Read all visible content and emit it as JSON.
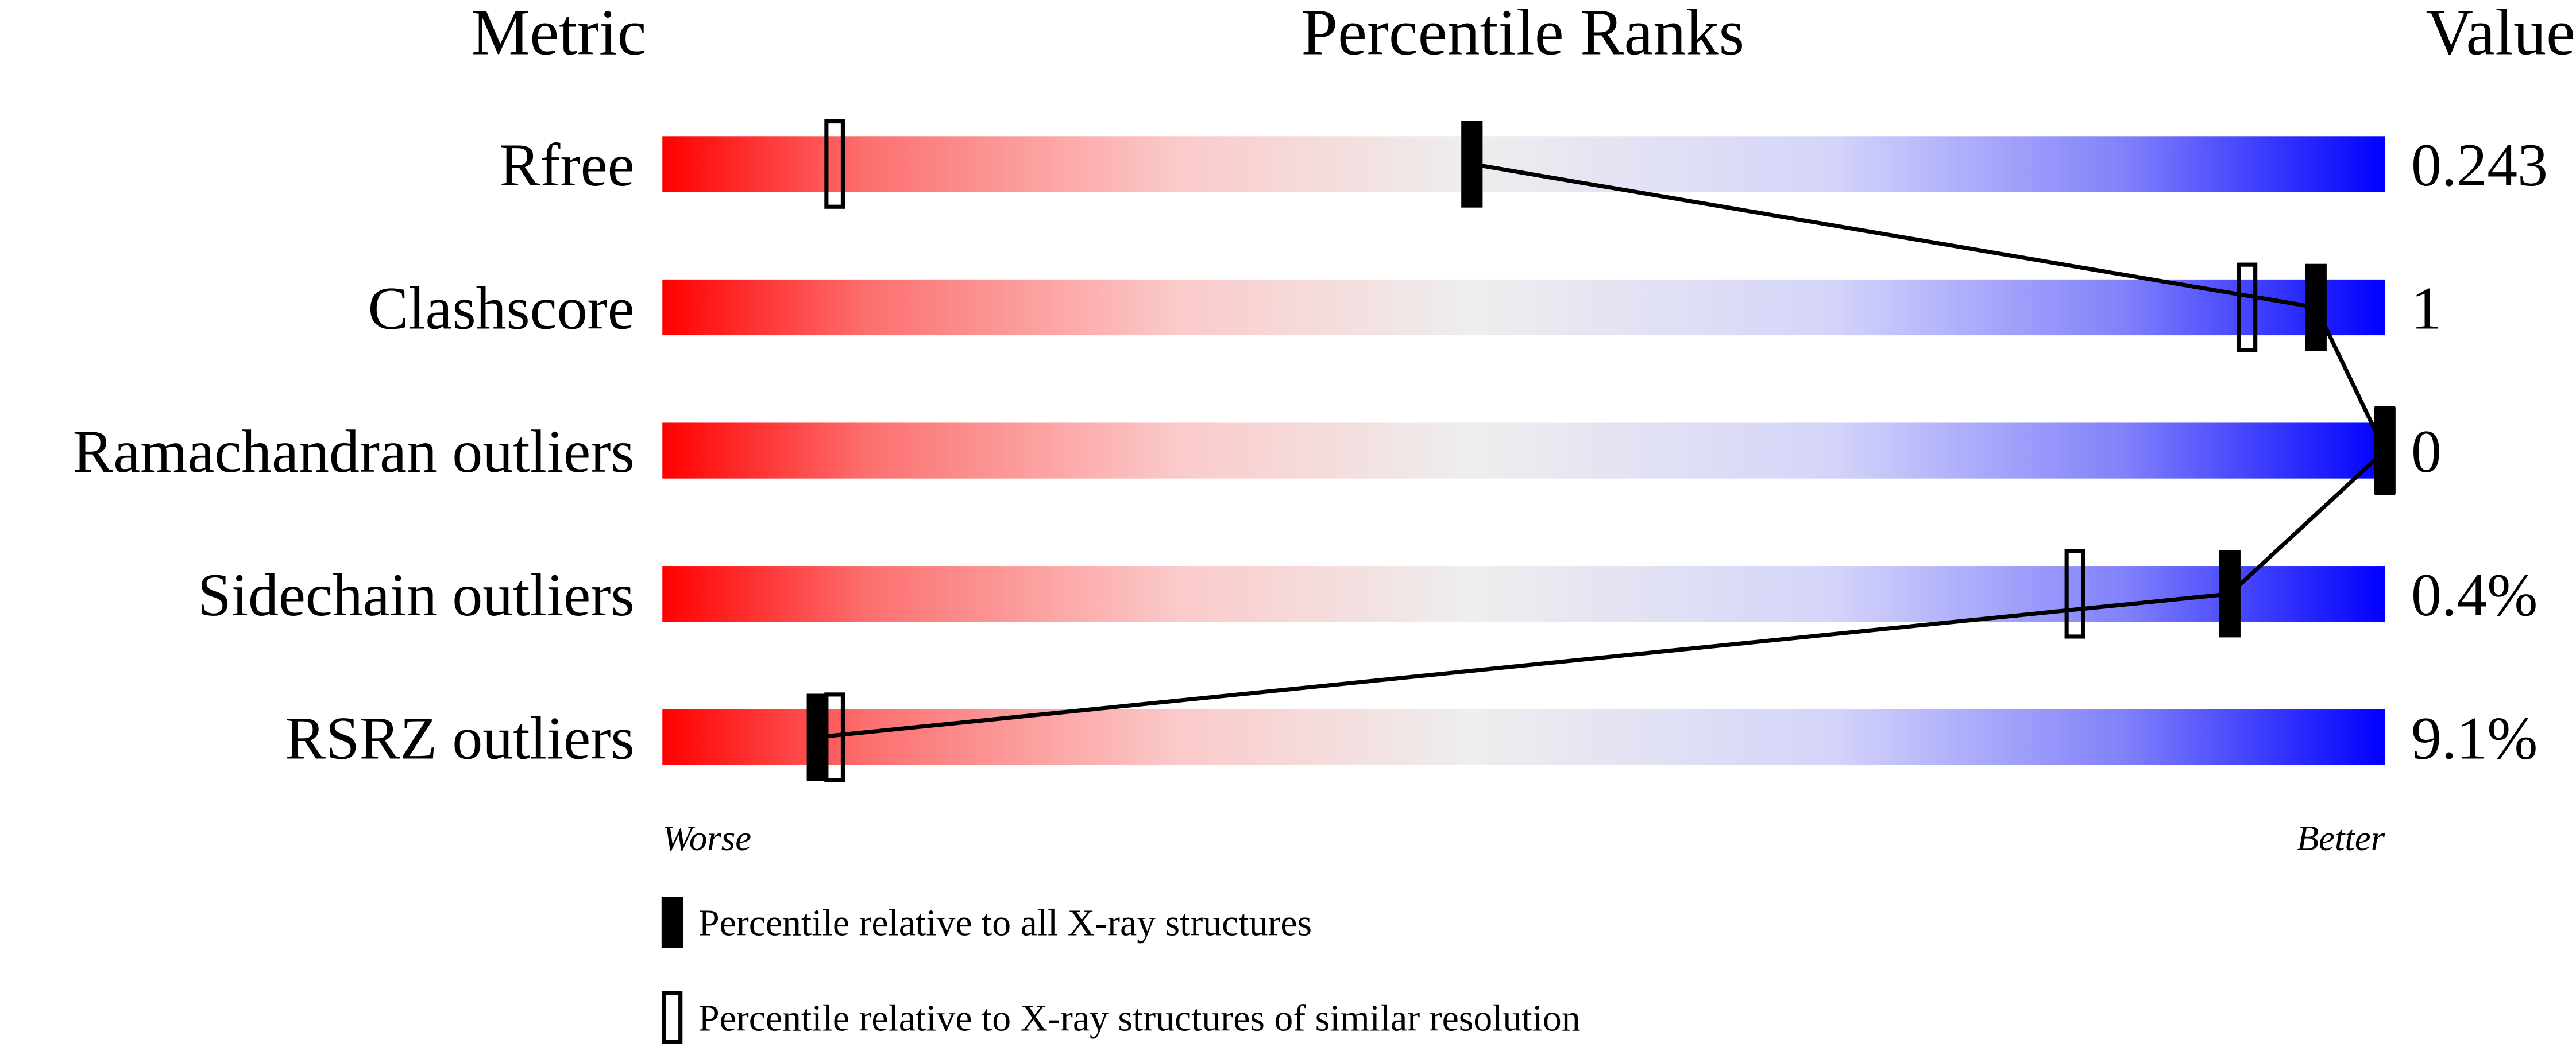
{
  "chart_data": {
    "type": "percentile-slider",
    "headers": [
      "Metric",
      "Percentile Ranks",
      "Value"
    ],
    "categories": [
      "Rfree",
      "Clashscore",
      "Ramachandran outliers",
      "Sidechain outliers",
      "RSRZ outliers"
    ],
    "values": [
      0.243,
      1,
      0,
      0.4,
      9.1
    ],
    "value_labels": [
      "0.243",
      "1",
      "0",
      "0.4%",
      "9.1%"
    ],
    "xlim": [
      0,
      100
    ],
    "x_label_left": "Worse",
    "x_label_right": "Better",
    "series": [
      {
        "name": "Percentile relative to all X-ray structures",
        "color": "#000000",
        "marker": "filled",
        "connected": true,
        "values": [
          47,
          96,
          100,
          91,
          9
        ]
      },
      {
        "name": "Percentile relative to X-ray structures of similar resolution",
        "color": "#000000",
        "marker": "hollow",
        "connected": false,
        "values": [
          10,
          92,
          100,
          82,
          10
        ]
      }
    ]
  }
}
